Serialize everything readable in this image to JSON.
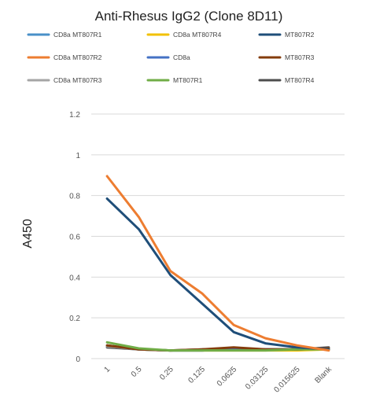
{
  "chart_data": {
    "type": "line",
    "title": "Anti-Rhesus IgG2 (Clone 8D11)",
    "xlabel": "",
    "ylabel": "A450",
    "ylim": [
      0,
      1.2
    ],
    "yticks": [
      "0",
      "0.2",
      "0.4",
      "0.6",
      "0.8",
      "1",
      "1.2"
    ],
    "grid": true,
    "legend": "top",
    "categories": [
      "1",
      "0.5",
      "0.25",
      "0.125",
      "0.0625",
      "0.03125",
      "0.015625",
      "Blank"
    ],
    "series": [
      {
        "name": "CD8a MT807R1",
        "color": "#4a90c8",
        "values": [
          0.06,
          0.045,
          0.04,
          0.04,
          0.045,
          0.045,
          0.045,
          0.045
        ]
      },
      {
        "name": "CD8a MT807R4",
        "color": "#f2c100",
        "values": [
          0.065,
          0.045,
          0.04,
          0.04,
          0.04,
          0.04,
          0.04,
          0.045
        ]
      },
      {
        "name": "MT807R2",
        "color": "#1f4e79",
        "values": [
          0.785,
          0.635,
          0.41,
          0.27,
          0.13,
          0.075,
          0.055,
          0.045
        ]
      },
      {
        "name": "CD8a MT807R2",
        "color": "#ed7d31",
        "values": [
          0.895,
          0.695,
          0.43,
          0.32,
          0.165,
          0.1,
          0.065,
          0.04
        ]
      },
      {
        "name": "CD8a",
        "color": "#4472c4",
        "values": [
          0.065,
          0.045,
          0.04,
          0.04,
          0.045,
          0.045,
          0.045,
          0.05
        ]
      },
      {
        "name": "MT807R3",
        "color": "#843c0c",
        "values": [
          0.065,
          0.045,
          0.04,
          0.045,
          0.055,
          0.045,
          0.045,
          0.05
        ]
      },
      {
        "name": "CD8a MT807R3",
        "color": "#a5a5a5",
        "values": [
          0.06,
          0.045,
          0.04,
          0.04,
          0.045,
          0.045,
          0.045,
          0.045
        ]
      },
      {
        "name": "MT807R1",
        "color": "#70ad47",
        "values": [
          0.08,
          0.05,
          0.04,
          0.04,
          0.04,
          0.04,
          0.045,
          0.045
        ]
      },
      {
        "name": "MT807R4",
        "color": "#4d4d4d",
        "values": [
          0.055,
          0.045,
          0.04,
          0.045,
          0.05,
          0.045,
          0.045,
          0.055
        ]
      }
    ]
  }
}
